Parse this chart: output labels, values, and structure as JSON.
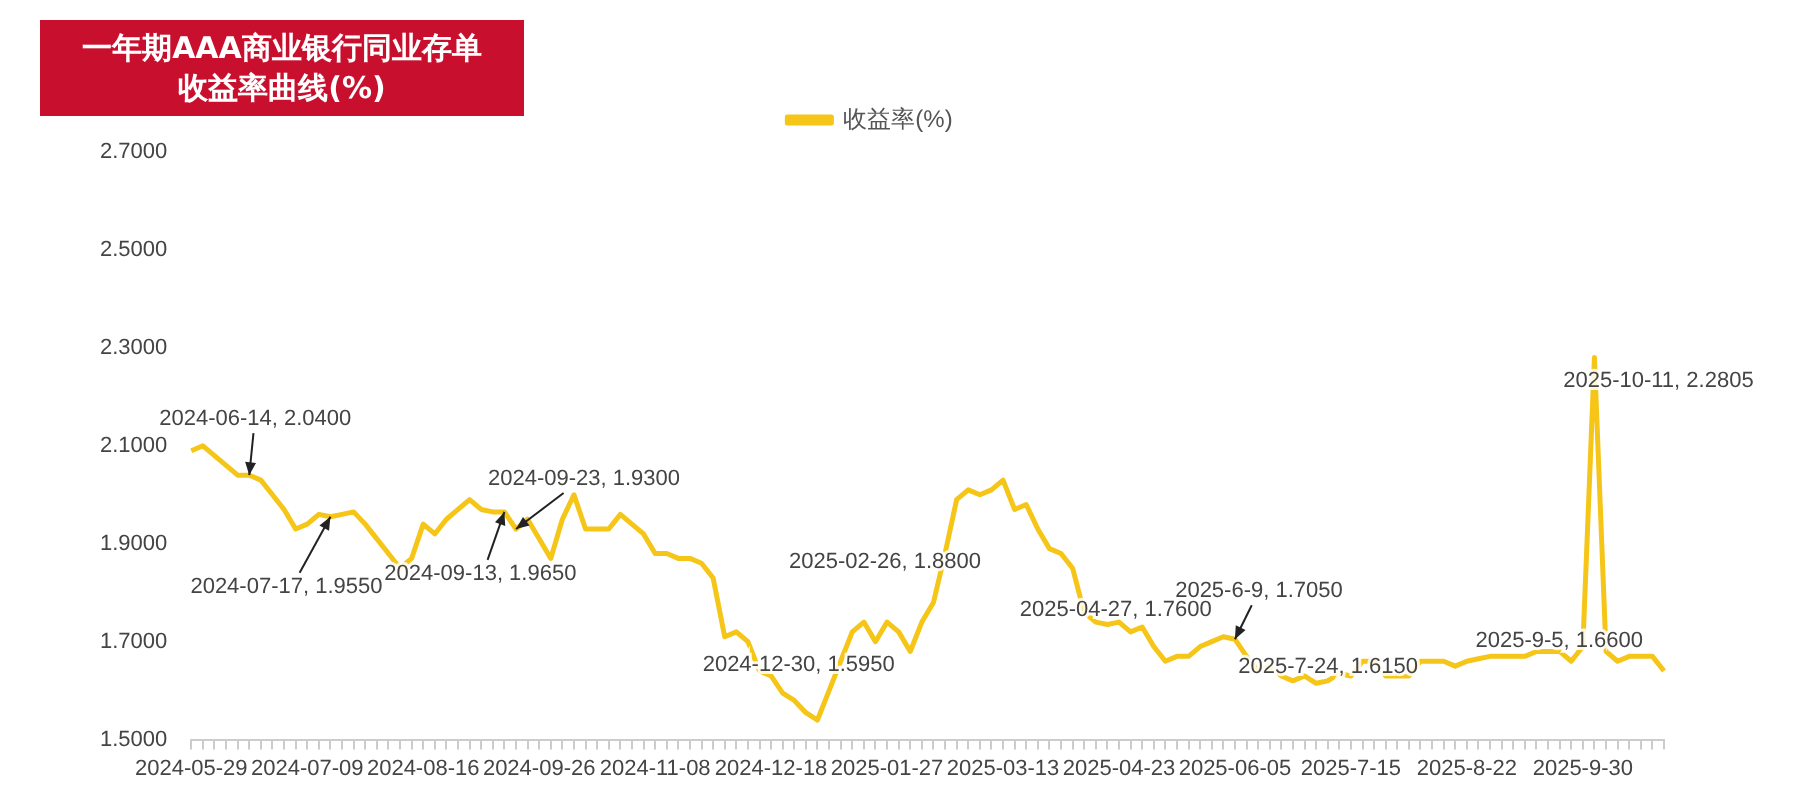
{
  "chart_data": {
    "type": "line",
    "title": "一年期AAA商业银行同业存单收益率曲线(%)",
    "categories": [
      "2024-05-29",
      null,
      null,
      null,
      null,
      null,
      null,
      null,
      null,
      null,
      "2024-07-09",
      null,
      null,
      null,
      null,
      null,
      null,
      null,
      null,
      null,
      "2024-08-16",
      null,
      null,
      null,
      null,
      null,
      null,
      null,
      null,
      null,
      "2024-09-26",
      null,
      null,
      null,
      null,
      null,
      null,
      null,
      null,
      null,
      "2024-11-08",
      null,
      null,
      null,
      null,
      null,
      null,
      null,
      null,
      null,
      "2024-12-18",
      null,
      null,
      null,
      null,
      null,
      null,
      null,
      null,
      null,
      "2025-01-27",
      null,
      null,
      null,
      null,
      null,
      null,
      null,
      null,
      null,
      "2025-03-13",
      null,
      null,
      null,
      null,
      null,
      null,
      null,
      null,
      null,
      "2025-04-23",
      null,
      null,
      null,
      null,
      null,
      null,
      null,
      null,
      null,
      "2025-06-05",
      null,
      null,
      null,
      null,
      null,
      null,
      null,
      null,
      null,
      "2025-7-15",
      null,
      null,
      null,
      null,
      null,
      null,
      null,
      null,
      null,
      "2025-8-22",
      null,
      null,
      null,
      null,
      null,
      null,
      null,
      null,
      null,
      "2025-9-30",
      null,
      null,
      null,
      null,
      null,
      null,
      null
    ],
    "series": [
      {
        "name": "收益率(%)",
        "color": "#f5c518",
        "values": [
          2.09,
          2.1,
          2.08,
          2.06,
          2.04,
          2.04,
          2.03,
          2.0,
          1.97,
          1.93,
          1.94,
          1.96,
          1.955,
          1.96,
          1.965,
          1.94,
          1.91,
          1.88,
          1.85,
          1.87,
          1.94,
          1.92,
          1.95,
          1.97,
          1.99,
          1.97,
          1.965,
          1.965,
          1.93,
          1.95,
          1.91,
          1.87,
          1.95,
          2.0,
          1.93,
          1.93,
          1.93,
          1.96,
          1.94,
          1.92,
          1.88,
          1.88,
          1.87,
          1.87,
          1.86,
          1.83,
          1.71,
          1.72,
          1.7,
          1.64,
          1.63,
          1.595,
          1.58,
          1.555,
          1.54,
          1.6,
          1.66,
          1.72,
          1.74,
          1.7,
          1.74,
          1.72,
          1.68,
          1.74,
          1.78,
          1.88,
          1.99,
          2.01,
          2.0,
          2.01,
          2.03,
          1.97,
          1.98,
          1.93,
          1.89,
          1.88,
          1.85,
          1.76,
          1.74,
          1.735,
          1.74,
          1.72,
          1.73,
          1.69,
          1.66,
          1.67,
          1.67,
          1.69,
          1.7,
          1.71,
          1.705,
          1.67,
          1.64,
          1.65,
          1.63,
          1.62,
          1.63,
          1.615,
          1.62,
          1.635,
          1.63,
          1.66,
          1.66,
          1.63,
          1.63,
          1.63,
          1.66,
          1.66,
          1.66,
          1.65,
          1.66,
          1.665,
          1.67,
          1.67,
          1.67,
          1.67,
          1.68,
          1.68,
          1.68,
          1.66,
          1.69,
          2.2805,
          1.68,
          1.66,
          1.67,
          1.67,
          1.67,
          1.64
        ]
      }
    ],
    "ylim": [
      1.5,
      2.7
    ],
    "yticks": [
      {
        "value": 1.5,
        "label": "1.5000"
      },
      {
        "value": 1.7,
        "label": "1.7000"
      },
      {
        "value": 1.9,
        "label": "1.9000"
      },
      {
        "value": 2.1,
        "label": "2.1000"
      },
      {
        "value": 2.3,
        "label": "2.3000"
      },
      {
        "value": 2.5,
        "label": "2.5000"
      },
      {
        "value": 2.7,
        "label": "2.7000"
      }
    ],
    "grid": false,
    "legend": "top",
    "marker": "none",
    "line_style": "solid",
    "annotations": [
      {
        "text": "2024-06-14, 2.0400",
        "y": 2.04
      },
      {
        "text": "2024-07-17, 1.9550",
        "y": 1.955
      },
      {
        "text": "2024-09-13, 1.9650",
        "y": 1.965
      },
      {
        "text": "2024-09-23, 1.9300",
        "y": 1.93
      },
      "2024-12-30, 1.5950",
      "2025-02-26, 1.8800",
      "2025-04-27, 1.7600",
      "2025-6-9, 1.7050",
      "2025-7-24, 1.6150",
      "2025-9-5, 1.6600",
      "2025-10-11, 2.2805"
    ]
  }
}
